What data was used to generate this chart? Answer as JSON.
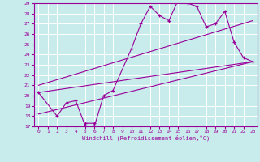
{
  "xlabel": "Windchill (Refroidissement éolien,°C)",
  "ylabel": "",
  "bg_color": "#c8ebeb",
  "line_color": "#990099",
  "grid_color": "#ffffff",
  "xlim": [
    -0.5,
    23.5
  ],
  "ylim": [
    17,
    29
  ],
  "xticks": [
    0,
    1,
    2,
    3,
    4,
    5,
    6,
    7,
    8,
    9,
    10,
    11,
    12,
    13,
    14,
    15,
    16,
    17,
    18,
    19,
    20,
    21,
    22,
    23
  ],
  "yticks": [
    17,
    18,
    19,
    20,
    21,
    22,
    23,
    24,
    25,
    26,
    27,
    28,
    29
  ],
  "data_x": [
    0,
    2,
    3,
    4,
    5,
    5,
    6,
    6,
    7,
    8,
    10,
    11,
    12,
    13,
    14,
    15,
    16,
    17,
    18,
    19,
    20,
    21,
    22,
    23
  ],
  "data_y": [
    20.3,
    18.0,
    19.3,
    19.5,
    17.1,
    17.3,
    17.3,
    17.0,
    20.0,
    20.5,
    24.6,
    27.0,
    28.7,
    27.8,
    27.3,
    29.3,
    29.0,
    28.7,
    26.7,
    27.0,
    28.2,
    25.2,
    23.7,
    23.3
  ],
  "line1_x": [
    0,
    23
  ],
  "line1_y": [
    21.0,
    27.3
  ],
  "line2_x": [
    0,
    23
  ],
  "line2_y": [
    18.2,
    23.3
  ],
  "line3_x": [
    0,
    23
  ],
  "line3_y": [
    20.3,
    23.3
  ]
}
